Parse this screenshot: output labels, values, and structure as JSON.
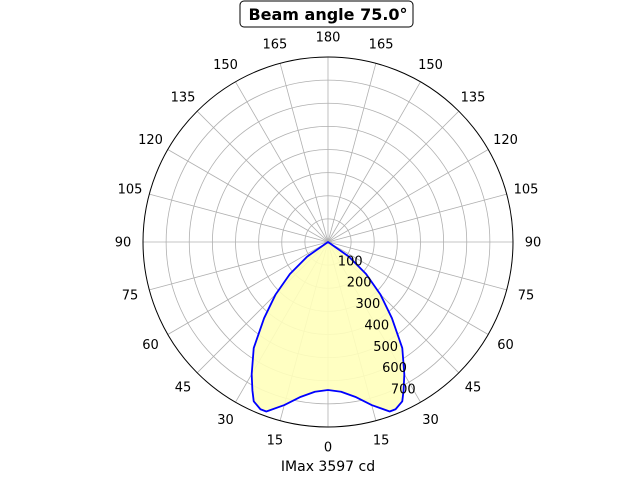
{
  "chart_data": {
    "type": "polar-area",
    "title": "Beam angle 75.0°",
    "xlabel": "IMax 3597 cd",
    "angle_tick_labels": [
      "180",
      "165",
      "150",
      "135",
      "120",
      "105",
      "90",
      "75",
      "60",
      "45",
      "30",
      "15",
      "0",
      "15",
      "30",
      "45",
      "60",
      "75",
      "90",
      "105",
      "120",
      "135",
      "150",
      "165"
    ],
    "angle_ticks_deg": [
      180,
      165,
      150,
      135,
      120,
      105,
      90,
      75,
      60,
      45,
      30,
      15,
      0,
      -15,
      -30,
      -45,
      -60,
      -75,
      -90,
      -105,
      -120,
      -135,
      -150,
      -165
    ],
    "radial_tick_labels": [
      "100",
      "200",
      "300",
      "400",
      "500",
      "600",
      "700"
    ],
    "radial_ticks": [
      100,
      200,
      300,
      400,
      500,
      600,
      700
    ],
    "rlim": [
      0,
      800
    ],
    "grid": true,
    "series": [
      {
        "gamma_deg": [
          -60,
          -55,
          -50,
          -45,
          -40,
          -35,
          -30,
          -27,
          -25,
          -22,
          -20,
          -15,
          -10,
          -5,
          0,
          5,
          10,
          15,
          20,
          22,
          25,
          27,
          30,
          35,
          40,
          45,
          50,
          55,
          60
        ],
        "intensity": [
          0,
          110,
          215,
          320,
          430,
          560,
          660,
          720,
          760,
          780,
          780,
          730,
          680,
          650,
          640,
          650,
          680,
          730,
          780,
          780,
          760,
          720,
          660,
          560,
          430,
          320,
          215,
          110,
          0
        ]
      }
    ],
    "colors": {
      "curve": "#0000ff",
      "fill": "#ffffbb",
      "grid": "#b0b0b0",
      "axis": "#000000"
    }
  }
}
